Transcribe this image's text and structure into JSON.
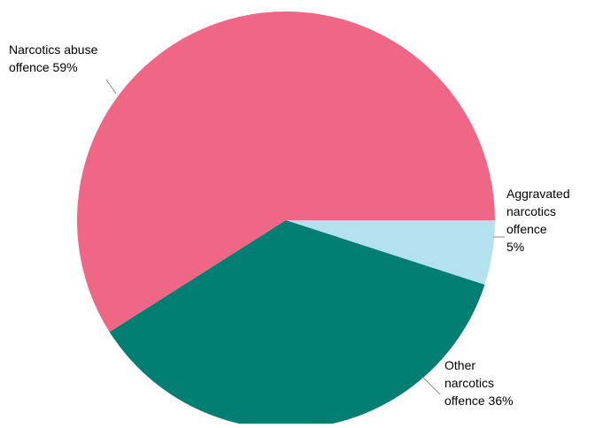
{
  "chart_data": {
    "type": "pie",
    "title": "",
    "slices": [
      {
        "label_lines": [
          "Narcotics abuse",
          "offence 59%"
        ],
        "value": 59,
        "color": "#f06685"
      },
      {
        "label_lines": [
          "Other",
          "narcotics",
          "offence 36%"
        ],
        "value": 36,
        "color": "#007e72"
      },
      {
        "label_lines": [
          "Aggravated",
          "narcotics",
          "offence",
          "5%"
        ],
        "value": 5,
        "color": "#b3e1f0"
      }
    ],
    "start_angle": "3 o'clock",
    "direction": "counter-clockwise",
    "legend": "none",
    "labels": "outside with leader lines"
  }
}
